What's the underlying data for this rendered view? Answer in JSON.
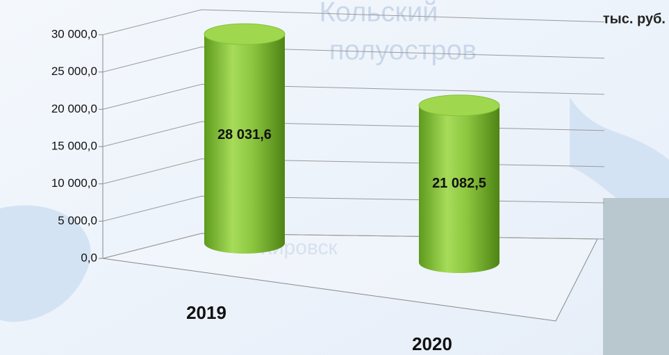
{
  "chart_data": {
    "type": "bar3d",
    "y_label": "тыс. руб.",
    "categories": [
      "2019",
      "2020"
    ],
    "values": [
      28031.6,
      21082.5
    ],
    "value_labels": [
      "28 031,6",
      "21 082,5"
    ],
    "color": "#8cc63f",
    "ylim": [
      0,
      30000
    ],
    "yticks": [
      {
        "value": 0,
        "label": "0,0"
      },
      {
        "value": 5000,
        "label": "5 000,0"
      },
      {
        "value": 10000,
        "label": "10 000,0"
      },
      {
        "value": 15000,
        "label": "15 000,0"
      },
      {
        "value": 20000,
        "label": "20 000,0"
      },
      {
        "value": 25000,
        "label": "25 000,0"
      },
      {
        "value": 30000,
        "label": "30 000,0"
      }
    ],
    "grid": true,
    "annotations": [
      "Кольский",
      "полуостров",
      "Кировск"
    ]
  }
}
